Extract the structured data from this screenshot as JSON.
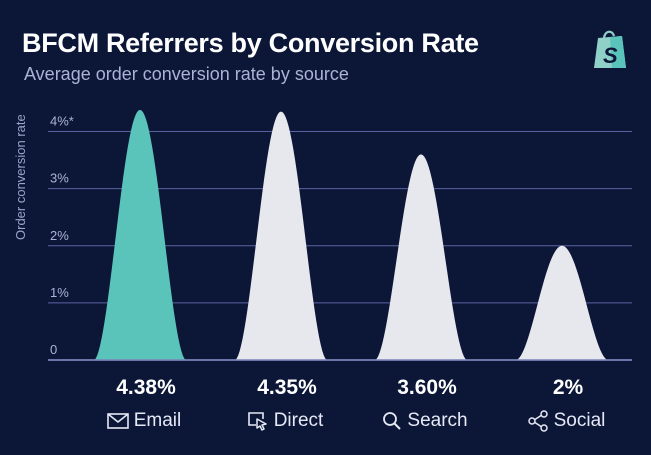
{
  "title": "BFCM Referrers by Conversion Rate",
  "subtitle": "Average order conversion rate by source",
  "colors": {
    "background": "#0c1738",
    "highlight": "#5bc4ba",
    "peak": "#e7e8ee",
    "gridline": "#5a63a0",
    "subtitle": "#aab3d6"
  },
  "logo_icon": "shopify-bag-icon",
  "chart_data": {
    "type": "area",
    "title": "BFCM Referrers by Conversion Rate",
    "subtitle": "Average order conversion rate by source",
    "ylabel": "Order conversion rate",
    "ylim": [
      0,
      4.5
    ],
    "yticks": [
      {
        "value": 0,
        "label": "0"
      },
      {
        "value": 1,
        "label": "1%"
      },
      {
        "value": 2,
        "label": "2%"
      },
      {
        "value": 3,
        "label": "3%"
      },
      {
        "value": 4,
        "label": "4%*"
      }
    ],
    "grid": true,
    "categories": [
      "Email",
      "Direct",
      "Search",
      "Social"
    ],
    "values": [
      4.38,
      4.35,
      3.6,
      2
    ],
    "value_labels": [
      "4.38%",
      "4.35%",
      "3.60%",
      "2%"
    ],
    "icons": [
      "envelope-icon",
      "cursor-click-icon",
      "search-icon",
      "share-icon"
    ],
    "highlighted": "Email"
  }
}
